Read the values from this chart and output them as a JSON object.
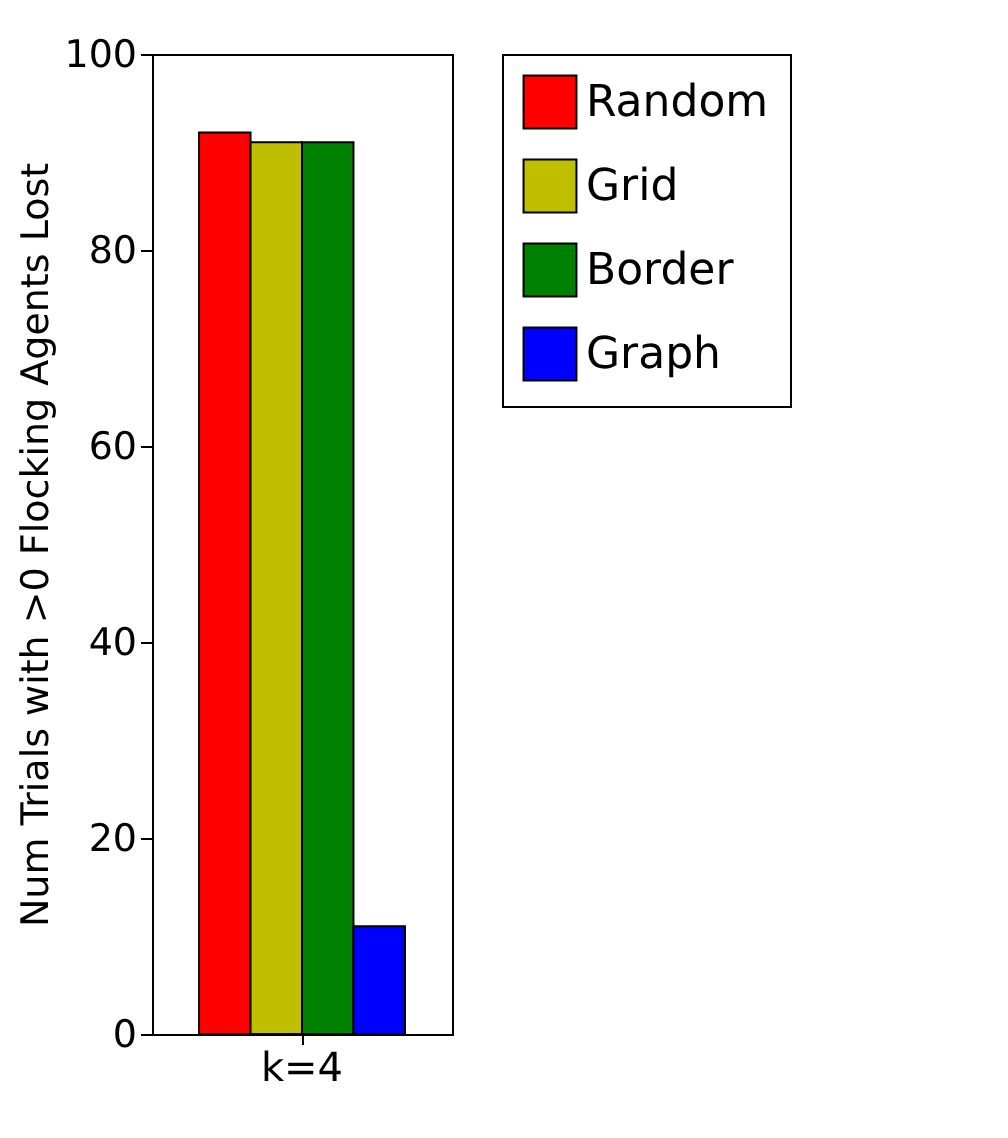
{
  "chart_data": {
    "type": "bar",
    "ylabel": "Num Trials with >0 Flocking Agents Lost",
    "categories": [
      "k=4"
    ],
    "series": [
      {
        "name": "Random",
        "color": "#ff0000",
        "values": [
          92
        ]
      },
      {
        "name": "Grid",
        "color": "#bfbf00",
        "values": [
          91
        ]
      },
      {
        "name": "Border",
        "color": "#008000",
        "values": [
          91
        ]
      },
      {
        "name": "Graph",
        "color": "#0000ff",
        "values": [
          11
        ]
      }
    ],
    "ylim": [
      0,
      100
    ],
    "yticks": [
      0,
      20,
      40,
      60,
      80,
      100
    ],
    "grid": false,
    "legend": "top right"
  }
}
